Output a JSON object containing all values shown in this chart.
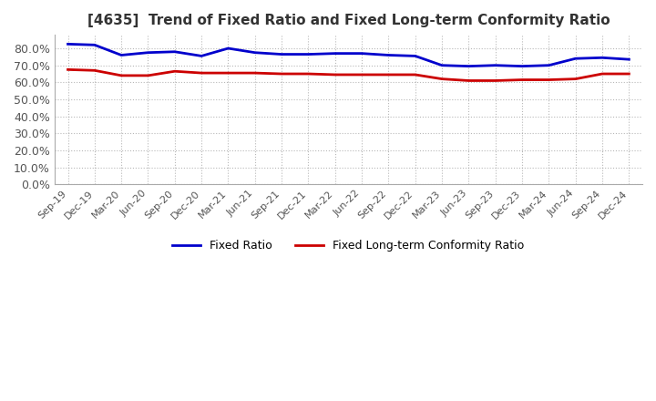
{
  "title": "[4635]  Trend of Fixed Ratio and Fixed Long-term Conformity Ratio",
  "x_labels": [
    "Sep-19",
    "Dec-19",
    "Mar-20",
    "Jun-20",
    "Sep-20",
    "Dec-20",
    "Mar-21",
    "Jun-21",
    "Sep-21",
    "Dec-21",
    "Mar-22",
    "Jun-22",
    "Sep-22",
    "Dec-22",
    "Mar-23",
    "Jun-23",
    "Sep-23",
    "Dec-23",
    "Mar-24",
    "Jun-24",
    "Sep-24",
    "Dec-24"
  ],
  "fixed_ratio": [
    82.5,
    82.0,
    76.0,
    77.5,
    78.0,
    75.5,
    80.0,
    77.5,
    76.5,
    76.5,
    77.0,
    77.0,
    76.0,
    75.5,
    70.0,
    69.5,
    70.0,
    69.5,
    70.0,
    74.0,
    74.5,
    73.5
  ],
  "fixed_lt_ratio": [
    67.5,
    67.0,
    64.0,
    64.0,
    66.5,
    65.5,
    65.5,
    65.5,
    65.0,
    65.0,
    64.5,
    64.5,
    64.5,
    64.5,
    62.0,
    61.0,
    61.0,
    61.5,
    61.5,
    62.0,
    65.0,
    65.0
  ],
  "fixed_ratio_color": "#0000cc",
  "fixed_lt_ratio_color": "#cc0000",
  "ylim": [
    0,
    88
  ],
  "yticks": [
    0,
    10,
    20,
    30,
    40,
    50,
    60,
    70,
    80
  ],
  "background_color": "#ffffff",
  "grid_color": "#999999",
  "legend_fixed_ratio": "Fixed Ratio",
  "legend_fixed_lt_ratio": "Fixed Long-term Conformity Ratio",
  "title_color": "#333333",
  "tick_color": "#555555"
}
